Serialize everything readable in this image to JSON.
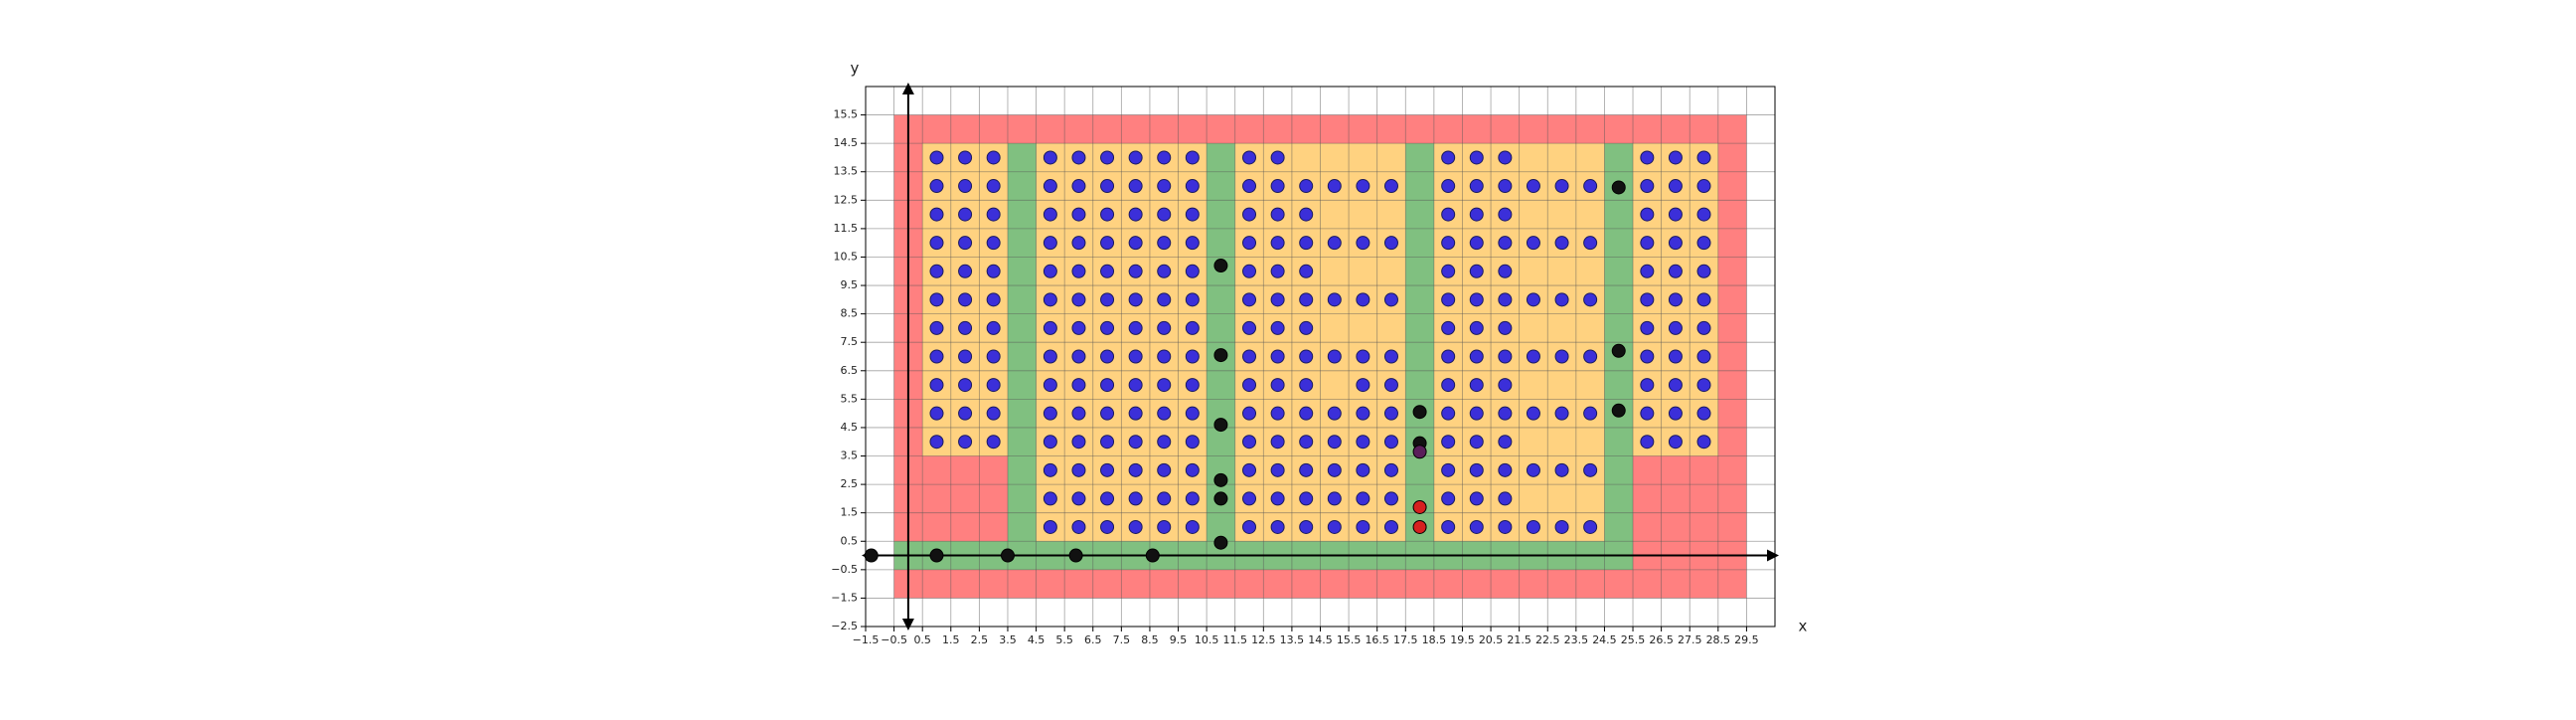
{
  "chart_data": {
    "type": "scatter",
    "xlabel": "x",
    "ylabel": "y",
    "xlim": [
      -1.5,
      30.5
    ],
    "ylim": [
      -2.5,
      16.5
    ],
    "grid": true,
    "xticks": [
      {
        "value": -1.5,
        "label": "−1.5"
      },
      {
        "value": -0.5,
        "label": "−0.5"
      },
      0.5,
      1.5,
      2.5,
      3.5,
      4.5,
      5.5,
      6.5,
      7.5,
      8.5,
      9.5,
      10.5,
      11.5,
      12.5,
      13.5,
      14.5,
      15.5,
      16.5,
      17.5,
      18.5,
      19.5,
      20.5,
      21.5,
      22.5,
      23.5,
      24.5,
      25.5,
      26.5,
      27.5,
      28.5,
      29.5
    ],
    "yticks": [
      {
        "value": -2.5,
        "label": "−2.5"
      },
      {
        "value": -1.5,
        "label": "−1.5"
      },
      {
        "value": -0.5,
        "label": "−0.5"
      },
      0.5,
      1.5,
      2.5,
      3.5,
      4.5,
      5.5,
      6.5,
      7.5,
      8.5,
      9.5,
      10.5,
      11.5,
      12.5,
      13.5,
      14.5,
      15.5
    ],
    "regions": [
      {
        "color": "#ff8080",
        "x": [
          -0.5,
          29.5
        ],
        "y": [
          -1.5,
          15.5
        ]
      },
      {
        "color": "#ffd280",
        "x": [
          0.5,
          28.5
        ],
        "y": [
          0.5,
          14.5
        ]
      },
      {
        "color": "#ff8080",
        "x": [
          0.5,
          3.5
        ],
        "y": [
          0.5,
          3.5
        ]
      },
      {
        "color": "#ff8080",
        "x": [
          25.5,
          28.5
        ],
        "y": [
          0.5,
          3.5
        ]
      },
      {
        "color": "#80c080",
        "x": [
          -0.5,
          25.5
        ],
        "y": [
          -0.5,
          0.5
        ]
      },
      {
        "color": "#80c080",
        "x": [
          3.5,
          4.5
        ],
        "y": [
          -0.5,
          14.5
        ]
      },
      {
        "color": "#80c080",
        "x": [
          10.5,
          11.5
        ],
        "y": [
          -0.5,
          14.5
        ]
      },
      {
        "color": "#80c080",
        "x": [
          17.5,
          18.5
        ],
        "y": [
          -0.5,
          14.5
        ]
      },
      {
        "color": "#80c080",
        "x": [
          24.5,
          25.5
        ],
        "y": [
          -0.5,
          14.5
        ]
      }
    ],
    "grid_points": {
      "color": "#3b2fd9",
      "columns": [
        {
          "x": 1,
          "y": [
            4,
            5,
            6,
            7,
            8,
            9,
            10,
            11,
            12,
            13,
            14
          ]
        },
        {
          "x": 2,
          "y": [
            4,
            5,
            6,
            7,
            8,
            9,
            10,
            11,
            12,
            13,
            14
          ]
        },
        {
          "x": 3,
          "y": [
            4,
            5,
            6,
            7,
            8,
            9,
            10,
            11,
            12,
            13,
            14
          ]
        },
        {
          "x": 5,
          "y": [
            1,
            2,
            3,
            4,
            5,
            6,
            7,
            8,
            9,
            10,
            11,
            12,
            13,
            14
          ]
        },
        {
          "x": 6,
          "y": [
            1,
            2,
            3,
            4,
            5,
            6,
            7,
            8,
            9,
            10,
            11,
            12,
            13,
            14
          ]
        },
        {
          "x": 7,
          "y": [
            1,
            2,
            3,
            4,
            5,
            6,
            7,
            8,
            9,
            10,
            11,
            12,
            13,
            14
          ]
        },
        {
          "x": 8,
          "y": [
            1,
            2,
            3,
            4,
            5,
            6,
            7,
            8,
            9,
            10,
            11,
            12,
            13,
            14
          ]
        },
        {
          "x": 9,
          "y": [
            1,
            2,
            3,
            4,
            5,
            6,
            7,
            8,
            9,
            10,
            11,
            12,
            13,
            14
          ]
        },
        {
          "x": 10,
          "y": [
            1,
            2,
            3,
            4,
            5,
            6,
            7,
            8,
            9,
            10,
            11,
            12,
            13,
            14
          ]
        },
        {
          "x": 12,
          "y": [
            1,
            2,
            3,
            4,
            5,
            6,
            7,
            8,
            9,
            10,
            11,
            12,
            13,
            14
          ]
        },
        {
          "x": 13,
          "y": [
            1,
            2,
            3,
            4,
            5,
            6,
            7,
            8,
            9,
            10,
            11,
            12,
            13,
            14
          ]
        },
        {
          "x": 14,
          "y": [
            1,
            2,
            3,
            4,
            5,
            6,
            7,
            8,
            9,
            10,
            11,
            12,
            13
          ]
        },
        {
          "x": 15,
          "y": [
            1,
            2,
            3,
            4,
            5,
            7,
            9,
            11,
            13
          ]
        },
        {
          "x": 16,
          "y": [
            1,
            2,
            3,
            4,
            5,
            6,
            7,
            9,
            11,
            13
          ]
        },
        {
          "x": 17,
          "y": [
            1,
            2,
            3,
            4,
            5,
            6,
            7,
            9,
            11,
            13
          ]
        },
        {
          "x": 19,
          "y": [
            1,
            2,
            3,
            4,
            5,
            6,
            7,
            8,
            9,
            10,
            11,
            12,
            13,
            14
          ]
        },
        {
          "x": 20,
          "y": [
            1,
            2,
            3,
            4,
            5,
            6,
            7,
            8,
            9,
            10,
            11,
            12,
            13,
            14
          ]
        },
        {
          "x": 21,
          "y": [
            1,
            2,
            3,
            4,
            5,
            6,
            7,
            8,
            9,
            10,
            11,
            12,
            13,
            14
          ]
        },
        {
          "x": 22,
          "y": [
            1,
            3,
            5,
            7,
            9,
            11,
            13
          ]
        },
        {
          "x": 23,
          "y": [
            1,
            3,
            5,
            7,
            9,
            11,
            13
          ]
        },
        {
          "x": 24,
          "y": [
            1,
            3,
            5,
            7,
            9,
            11,
            13
          ]
        },
        {
          "x": 26,
          "y": [
            4,
            5,
            6,
            7,
            8,
            9,
            10,
            11,
            12,
            13,
            14
          ]
        },
        {
          "x": 27,
          "y": [
            4,
            5,
            6,
            7,
            8,
            9,
            10,
            11,
            12,
            13,
            14
          ]
        },
        {
          "x": 28,
          "y": [
            4,
            5,
            6,
            7,
            8,
            9,
            10,
            11,
            12,
            13,
            14
          ]
        }
      ]
    },
    "series": [
      {
        "color": "#111111",
        "x": [
          -1.3,
          1,
          3.5,
          5.9,
          8.6,
          11,
          11,
          11,
          11,
          11,
          11,
          18,
          18,
          25,
          25,
          25
        ],
        "y": [
          0,
          0,
          0,
          0,
          0,
          10.2,
          7.05,
          4.6,
          2.65,
          2.0,
          0.45,
          5.05,
          3.95,
          12.95,
          7.2,
          5.1
        ]
      },
      {
        "color": "#5a1f5a",
        "x": [
          18
        ],
        "y": [
          3.65
        ]
      },
      {
        "color": "#d62020",
        "x": [
          18,
          18
        ],
        "y": [
          1.7,
          1.0
        ]
      }
    ]
  }
}
